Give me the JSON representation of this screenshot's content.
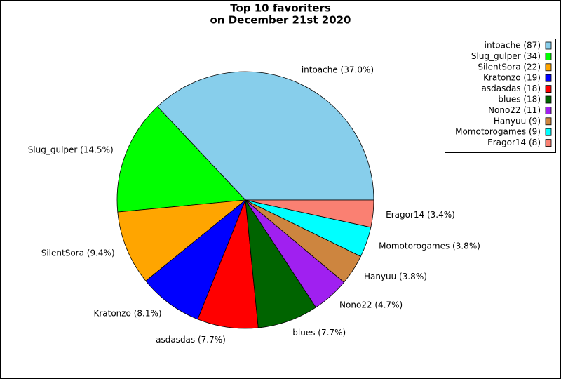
{
  "chart_data": {
    "type": "pie",
    "title": [
      "Top 10 favoriters",
      "on December 21st 2020"
    ],
    "categories": [
      "intoache",
      "Slug_gulper",
      "SilentSora",
      "Kratonzo",
      "asdasdas",
      "blues",
      "Nono22",
      "Hanyuu",
      "Momotorogames",
      "Eragor14"
    ],
    "values": [
      87,
      34,
      22,
      19,
      18,
      18,
      11,
      9,
      9,
      8
    ],
    "legend_labels": [
      "intoache (87)",
      "Slug_gulper (34)",
      "SilentSora (22)",
      "Kratonzo (19)",
      "asdasdas (18)",
      "blues (18)",
      "Nono22 (11)",
      "Hanyuu (9)",
      "Momotorogames (9)",
      "Eragor14 (8)"
    ],
    "slice_labels": [
      "intoache (37.0%)",
      "Slug_gulper (14.5%)",
      "SilentSora (9.4%)",
      "Kratonzo (8.1%)",
      "asdasdas (7.7%)",
      "blues (7.7%)",
      "Nono22 (4.7%)",
      "Hanyuu (3.8%)",
      "Momotorogames (3.8%)",
      "Eragor14 (3.4%)"
    ],
    "colors": [
      "#87ceeb",
      "#00ff00",
      "#ffa500",
      "#0000ff",
      "#ff0000",
      "#006400",
      "#a020f0",
      "#cd853f",
      "#00ffff",
      "#fa8072"
    ],
    "legend": "upper right"
  }
}
